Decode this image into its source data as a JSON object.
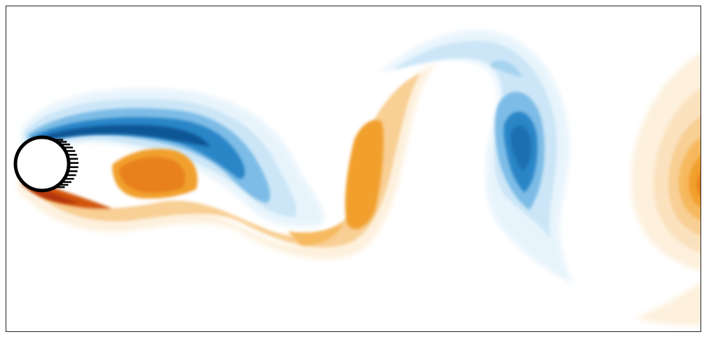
{
  "figure": {
    "kind": "vorticity-contour",
    "colors": {
      "positive_scale": [
        "#fdf0dc",
        "#fbe2bf",
        "#f8cf94",
        "#f6b95e",
        "#f1a02f",
        "#e8801e",
        "#d2570f",
        "#b5380a"
      ],
      "negative_scale": [
        "#e8f4fc",
        "#cce6f7",
        "#a6d3f0",
        "#7dbce6",
        "#4fa0d9",
        "#2c86c7",
        "#1a6fb1",
        "#0f5796"
      ],
      "frame": "#222222",
      "cylinder_outline": "#000000",
      "cylinder_fill": "#ffffff"
    }
  }
}
